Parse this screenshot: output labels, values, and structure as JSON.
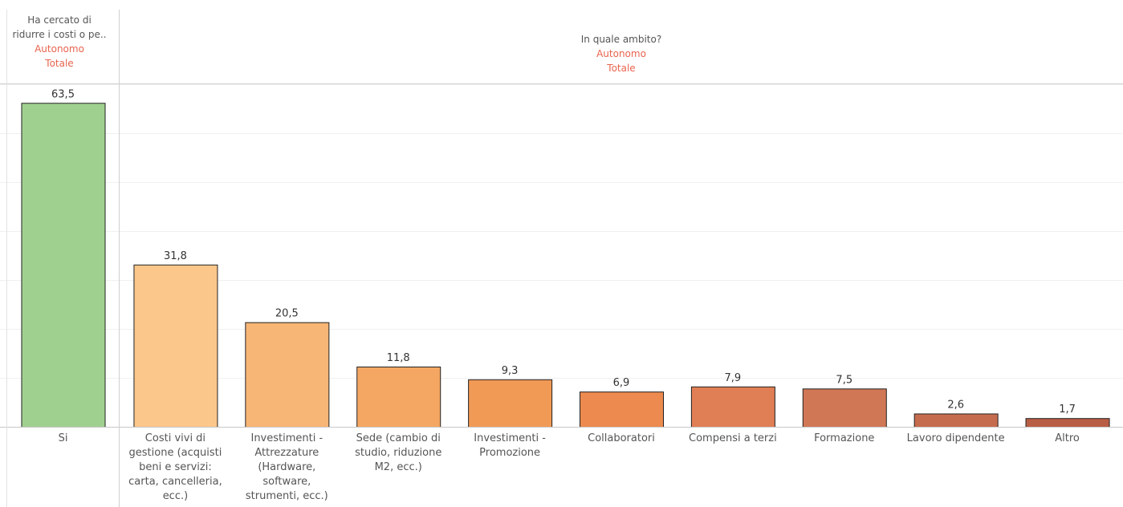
{
  "chart_data": [
    {
      "type": "bar",
      "header": [
        "Ha cercato di",
        "ridurre i costi o pe..",
        "Autonomo",
        "Totale"
      ],
      "categories": [
        "Si"
      ],
      "values": [
        63.5
      ],
      "value_labels": [
        "63,5"
      ],
      "ylim": [
        0,
        67
      ],
      "colors": [
        "#a0d08f"
      ]
    },
    {
      "type": "bar",
      "header": [
        "In quale ambito?",
        "Autonomo",
        "Totale"
      ],
      "categories": [
        "Costi vivi di gestione (acquisti beni e servizi: carta, cancelleria, ecc.)",
        "Investimenti - Attrezzature (Hardware, software, strumenti, ecc.)",
        "Sede (cambio di studio, riduzione M2, ecc.)",
        "Investimenti - Promozione",
        "Collaboratori",
        "Compensi a terzi",
        "Formazione",
        "Lavoro dipendente",
        "Altro"
      ],
      "values": [
        31.8,
        20.5,
        11.8,
        9.3,
        6.9,
        7.9,
        7.5,
        2.6,
        1.7
      ],
      "value_labels": [
        "31,8",
        "20,5",
        "11,8",
        "9,3",
        "6,9",
        "7,9",
        "7,5",
        "2,6",
        "1,7"
      ],
      "ylim": [
        0,
        67
      ],
      "colors": [
        "#fbc78a",
        "#f7b576",
        "#f4a762",
        "#f19a56",
        "#ec8a4f",
        "#e07e55",
        "#d07756",
        "#c66c4e",
        "#b85e45"
      ]
    }
  ]
}
